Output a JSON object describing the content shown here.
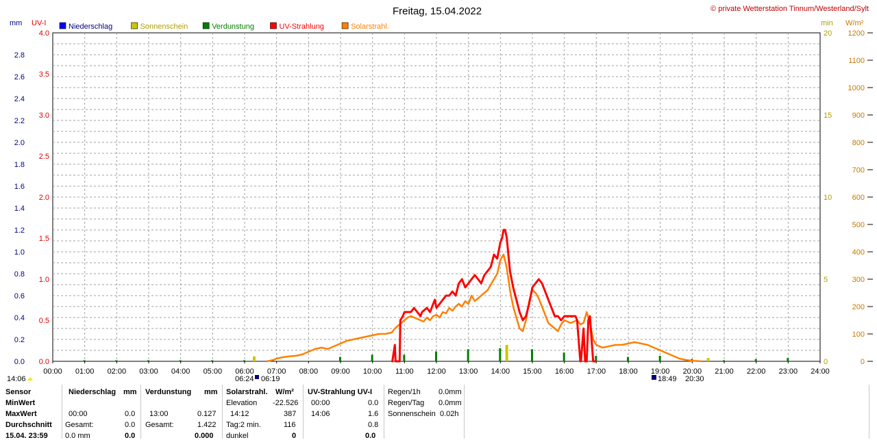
{
  "chart_data": {
    "type": "line",
    "title": "Freitag, 15.04.2022",
    "copyright": "© private Wetterstation Tinnum/Westerland/Sylt",
    "axes": {
      "left_mm": {
        "unit": "mm",
        "range": [
          0,
          3.0
        ],
        "ticks": [
          "0.0",
          "0.2",
          "0.4",
          "0.6",
          "0.8",
          "1.0",
          "1.2",
          "1.4",
          "1.6",
          "1.8",
          "2.0",
          "2.2",
          "2.4",
          "2.6",
          "2.8"
        ]
      },
      "left_uv": {
        "unit": "UV-I",
        "range": [
          0,
          4.0
        ],
        "ticks": [
          "0.0",
          "0.5",
          "1.0",
          "1.5",
          "2.0",
          "2.5",
          "3.0",
          "3.5",
          "4.0"
        ]
      },
      "right_min": {
        "unit": "min",
        "range": [
          0,
          20
        ],
        "ticks": [
          "0",
          "5",
          "10",
          "15",
          "20"
        ]
      },
      "right_wm2": {
        "unit": "W/m²",
        "range": [
          0,
          1200
        ],
        "ticks": [
          "0",
          "100",
          "200",
          "300",
          "400",
          "500",
          "600",
          "700",
          "800",
          "900",
          "1000",
          "1100",
          "1200"
        ]
      },
      "x_ticks": [
        "00:00",
        "01:00",
        "02:00",
        "03:00",
        "04:00",
        "05:00",
        "06:00",
        "07:00",
        "08:00",
        "09:00",
        "10:00",
        "11:00",
        "12:00",
        "13:00",
        "14:00",
        "15:00",
        "16:00",
        "17:00",
        "18:00",
        "19:00",
        "20:00",
        "21:00",
        "22:00",
        "23:00",
        "24:00"
      ]
    },
    "legend": [
      {
        "name": "Niederschlag",
        "color": "#0000ff"
      },
      {
        "name": "Sonnenschein",
        "color": "#c8c800"
      },
      {
        "name": "Verdunstung",
        "color": "#008000"
      },
      {
        "name": "UV-Strahlung",
        "color": "#ff0000"
      },
      {
        "name": "Solarstrahl.",
        "color": "#ff8000"
      }
    ],
    "sun_marks": {
      "sunrise": "06:24",
      "sunset_label": "06:19",
      "sunset": "18:49",
      "dusk": "20:30",
      "left_time": "14:06"
    },
    "series": [
      {
        "name": "UV-Strahlung",
        "axis": "left_uv",
        "color": "#ff0000",
        "x": [
          10.6,
          10.62,
          10.7,
          10.72,
          10.85,
          10.87,
          10.95,
          11.0,
          11.1,
          11.2,
          11.3,
          11.4,
          11.5,
          11.55,
          11.7,
          11.8,
          11.9,
          11.95,
          12.0,
          12.1,
          12.2,
          12.3,
          12.4,
          12.5,
          12.6,
          12.7,
          12.8,
          12.9,
          13.0,
          13.1,
          13.2,
          13.3,
          13.4,
          13.5,
          13.6,
          13.7,
          13.8,
          13.9,
          14.0,
          14.05,
          14.1,
          14.15,
          14.2,
          14.3,
          14.4,
          14.5,
          14.6,
          14.7,
          14.8,
          14.9,
          15.0,
          15.1,
          15.2,
          15.3,
          15.4,
          15.5,
          15.6,
          15.7,
          15.8,
          15.9,
          16.0,
          16.1,
          16.2,
          16.3,
          16.35,
          16.4,
          16.5,
          16.52,
          16.6,
          16.65,
          16.7,
          16.75,
          16.8,
          16.9,
          17.0
        ],
        "y": [
          0.0,
          0.0,
          0.2,
          0.0,
          0.0,
          0.5,
          0.55,
          0.6,
          0.6,
          0.6,
          0.65,
          0.6,
          0.55,
          0.6,
          0.65,
          0.6,
          0.7,
          0.75,
          0.65,
          0.7,
          0.75,
          0.8,
          0.8,
          0.85,
          0.8,
          0.95,
          1.0,
          0.9,
          0.95,
          1.0,
          1.05,
          1.0,
          0.95,
          1.05,
          1.1,
          1.15,
          1.3,
          1.25,
          1.45,
          1.5,
          1.6,
          1.6,
          1.5,
          1.1,
          0.9,
          0.75,
          0.6,
          0.5,
          0.55,
          0.7,
          0.9,
          0.95,
          1.0,
          0.95,
          0.85,
          0.75,
          0.65,
          0.55,
          0.55,
          0.5,
          0.55,
          0.55,
          0.55,
          0.55,
          0.55,
          0.5,
          0.0,
          0.0,
          0.4,
          0.0,
          0.0,
          0.5,
          0.55,
          0.0,
          0.0
        ]
      },
      {
        "name": "Solarstrahl.",
        "axis": "right_wm2",
        "color": "#ff8000",
        "x": [
          6.7,
          6.9,
          7.0,
          7.2,
          7.4,
          7.6,
          7.8,
          8.0,
          8.2,
          8.4,
          8.6,
          8.8,
          9.0,
          9.2,
          9.4,
          9.6,
          9.8,
          10.0,
          10.2,
          10.4,
          10.6,
          10.7,
          10.8,
          10.9,
          11.0,
          11.1,
          11.2,
          11.3,
          11.4,
          11.5,
          11.6,
          11.7,
          11.8,
          11.9,
          12.0,
          12.1,
          12.2,
          12.3,
          12.4,
          12.5,
          12.6,
          12.7,
          12.8,
          12.9,
          13.0,
          13.1,
          13.2,
          13.3,
          13.4,
          13.5,
          13.6,
          13.7,
          13.8,
          13.9,
          14.0,
          14.1,
          14.2,
          14.3,
          14.4,
          14.5,
          14.6,
          14.7,
          14.8,
          14.9,
          15.0,
          15.1,
          15.2,
          15.3,
          15.4,
          15.5,
          15.6,
          15.7,
          15.8,
          15.9,
          16.0,
          16.1,
          16.2,
          16.3,
          16.4,
          16.5,
          16.6,
          16.7,
          16.8,
          16.9,
          17.0,
          17.2,
          17.4,
          17.6,
          17.8,
          18.0,
          18.2,
          18.4,
          18.6,
          18.8,
          19.0,
          19.2,
          19.4,
          19.6,
          19.8,
          20.0,
          20.3
        ],
        "y": [
          0,
          5,
          10,
          15,
          18,
          20,
          25,
          35,
          45,
          50,
          45,
          55,
          65,
          75,
          80,
          85,
          90,
          95,
          100,
          100,
          105,
          120,
          130,
          140,
          150,
          160,
          165,
          160,
          155,
          150,
          145,
          160,
          150,
          165,
          170,
          160,
          180,
          175,
          195,
          185,
          200,
          210,
          200,
          220,
          210,
          240,
          220,
          230,
          240,
          250,
          260,
          280,
          300,
          320,
          370,
          390,
          340,
          260,
          200,
          160,
          120,
          110,
          150,
          220,
          260,
          250,
          230,
          200,
          170,
          140,
          130,
          120,
          110,
          135,
          150,
          145,
          140,
          145,
          150,
          135,
          140,
          180,
          140,
          80,
          60,
          50,
          55,
          60,
          60,
          65,
          70,
          65,
          60,
          50,
          40,
          30,
          20,
          10,
          5,
          2,
          0
        ]
      },
      {
        "name": "Verdunstung",
        "axis": "left_mm",
        "color": "#008000",
        "x": [
          1,
          2,
          3,
          4,
          5,
          6,
          9,
          10,
          11,
          12,
          13,
          14,
          15,
          16,
          17,
          18,
          19,
          20,
          21,
          22,
          23
        ],
        "y": [
          0.01,
          0.01,
          0.01,
          0.01,
          0.01,
          0.01,
          0.04,
          0.06,
          0.06,
          0.09,
          0.11,
          0.12,
          0.11,
          0.08,
          0.05,
          0.04,
          0.05,
          0.02,
          0.01,
          0.02,
          0.03
        ]
      },
      {
        "name": "Sonnenschein",
        "axis": "right_min",
        "color": "#c8c800",
        "x": [
          14.2,
          6.3,
          20.5
        ],
        "y": [
          1.0,
          0.3,
          0.2
        ]
      }
    ]
  },
  "table": {
    "sensor": {
      "h": "Sensor",
      "r1": "MinWert",
      "r2": "MaxWert",
      "r3": "Durchschnitt",
      "r4": "15.04. 23:59"
    },
    "nieder": {
      "h": "Niederschlag",
      "u": "mm",
      "max_t": "00:00",
      "max_v": "0.0",
      "avg_l": "Gesamt:",
      "avg_v": "0.0",
      "r4_l": "0.0 mm",
      "r4_v": "0.0"
    },
    "verd": {
      "h": "Verdunstung",
      "u": "mm",
      "max_t": "13:00",
      "max_v": "0.127",
      "avg_l": "Gesamt:",
      "avg_v": "1.422",
      "r4_v": "0.000"
    },
    "solar": {
      "h": "Solarstrahl.",
      "u": "W/m²",
      "min_l": "Elevation",
      "min_v": "-22.526",
      "max_t": "14:12",
      "max_v": "387",
      "avg_l": "Tag:2 min.",
      "avg_v": "116",
      "r4_l": "dunkel",
      "r4_v": "0"
    },
    "uv": {
      "h": "UV-Strahlung UV-I",
      "min_t": "00:00",
      "min_v": "0.0",
      "max_t": "14:06",
      "max_v": "1.6",
      "avg_v": "0.8",
      "r4_v": "0.0"
    },
    "regen": {
      "l1": "Regen/1h",
      "v1": "0.0mm",
      "l2": "Regen/Tag",
      "v2": "0.0mm",
      "l3": "Sonnenschein",
      "v3": "0.02h"
    }
  }
}
